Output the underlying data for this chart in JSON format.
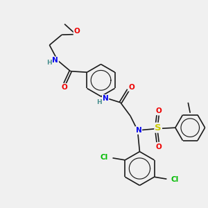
{
  "background_color": "#f0f0f0",
  "atom_colors": {
    "C": "#1a1a1a",
    "N": "#0000ee",
    "O": "#ee0000",
    "S": "#cccc00",
    "Cl": "#00bb00",
    "H": "#4a9090"
  },
  "bond_color": "#1a1a1a",
  "bond_width": 1.2,
  "font_size": 7.5,
  "fig_size": [
    3.0,
    3.0
  ],
  "dpi": 100
}
